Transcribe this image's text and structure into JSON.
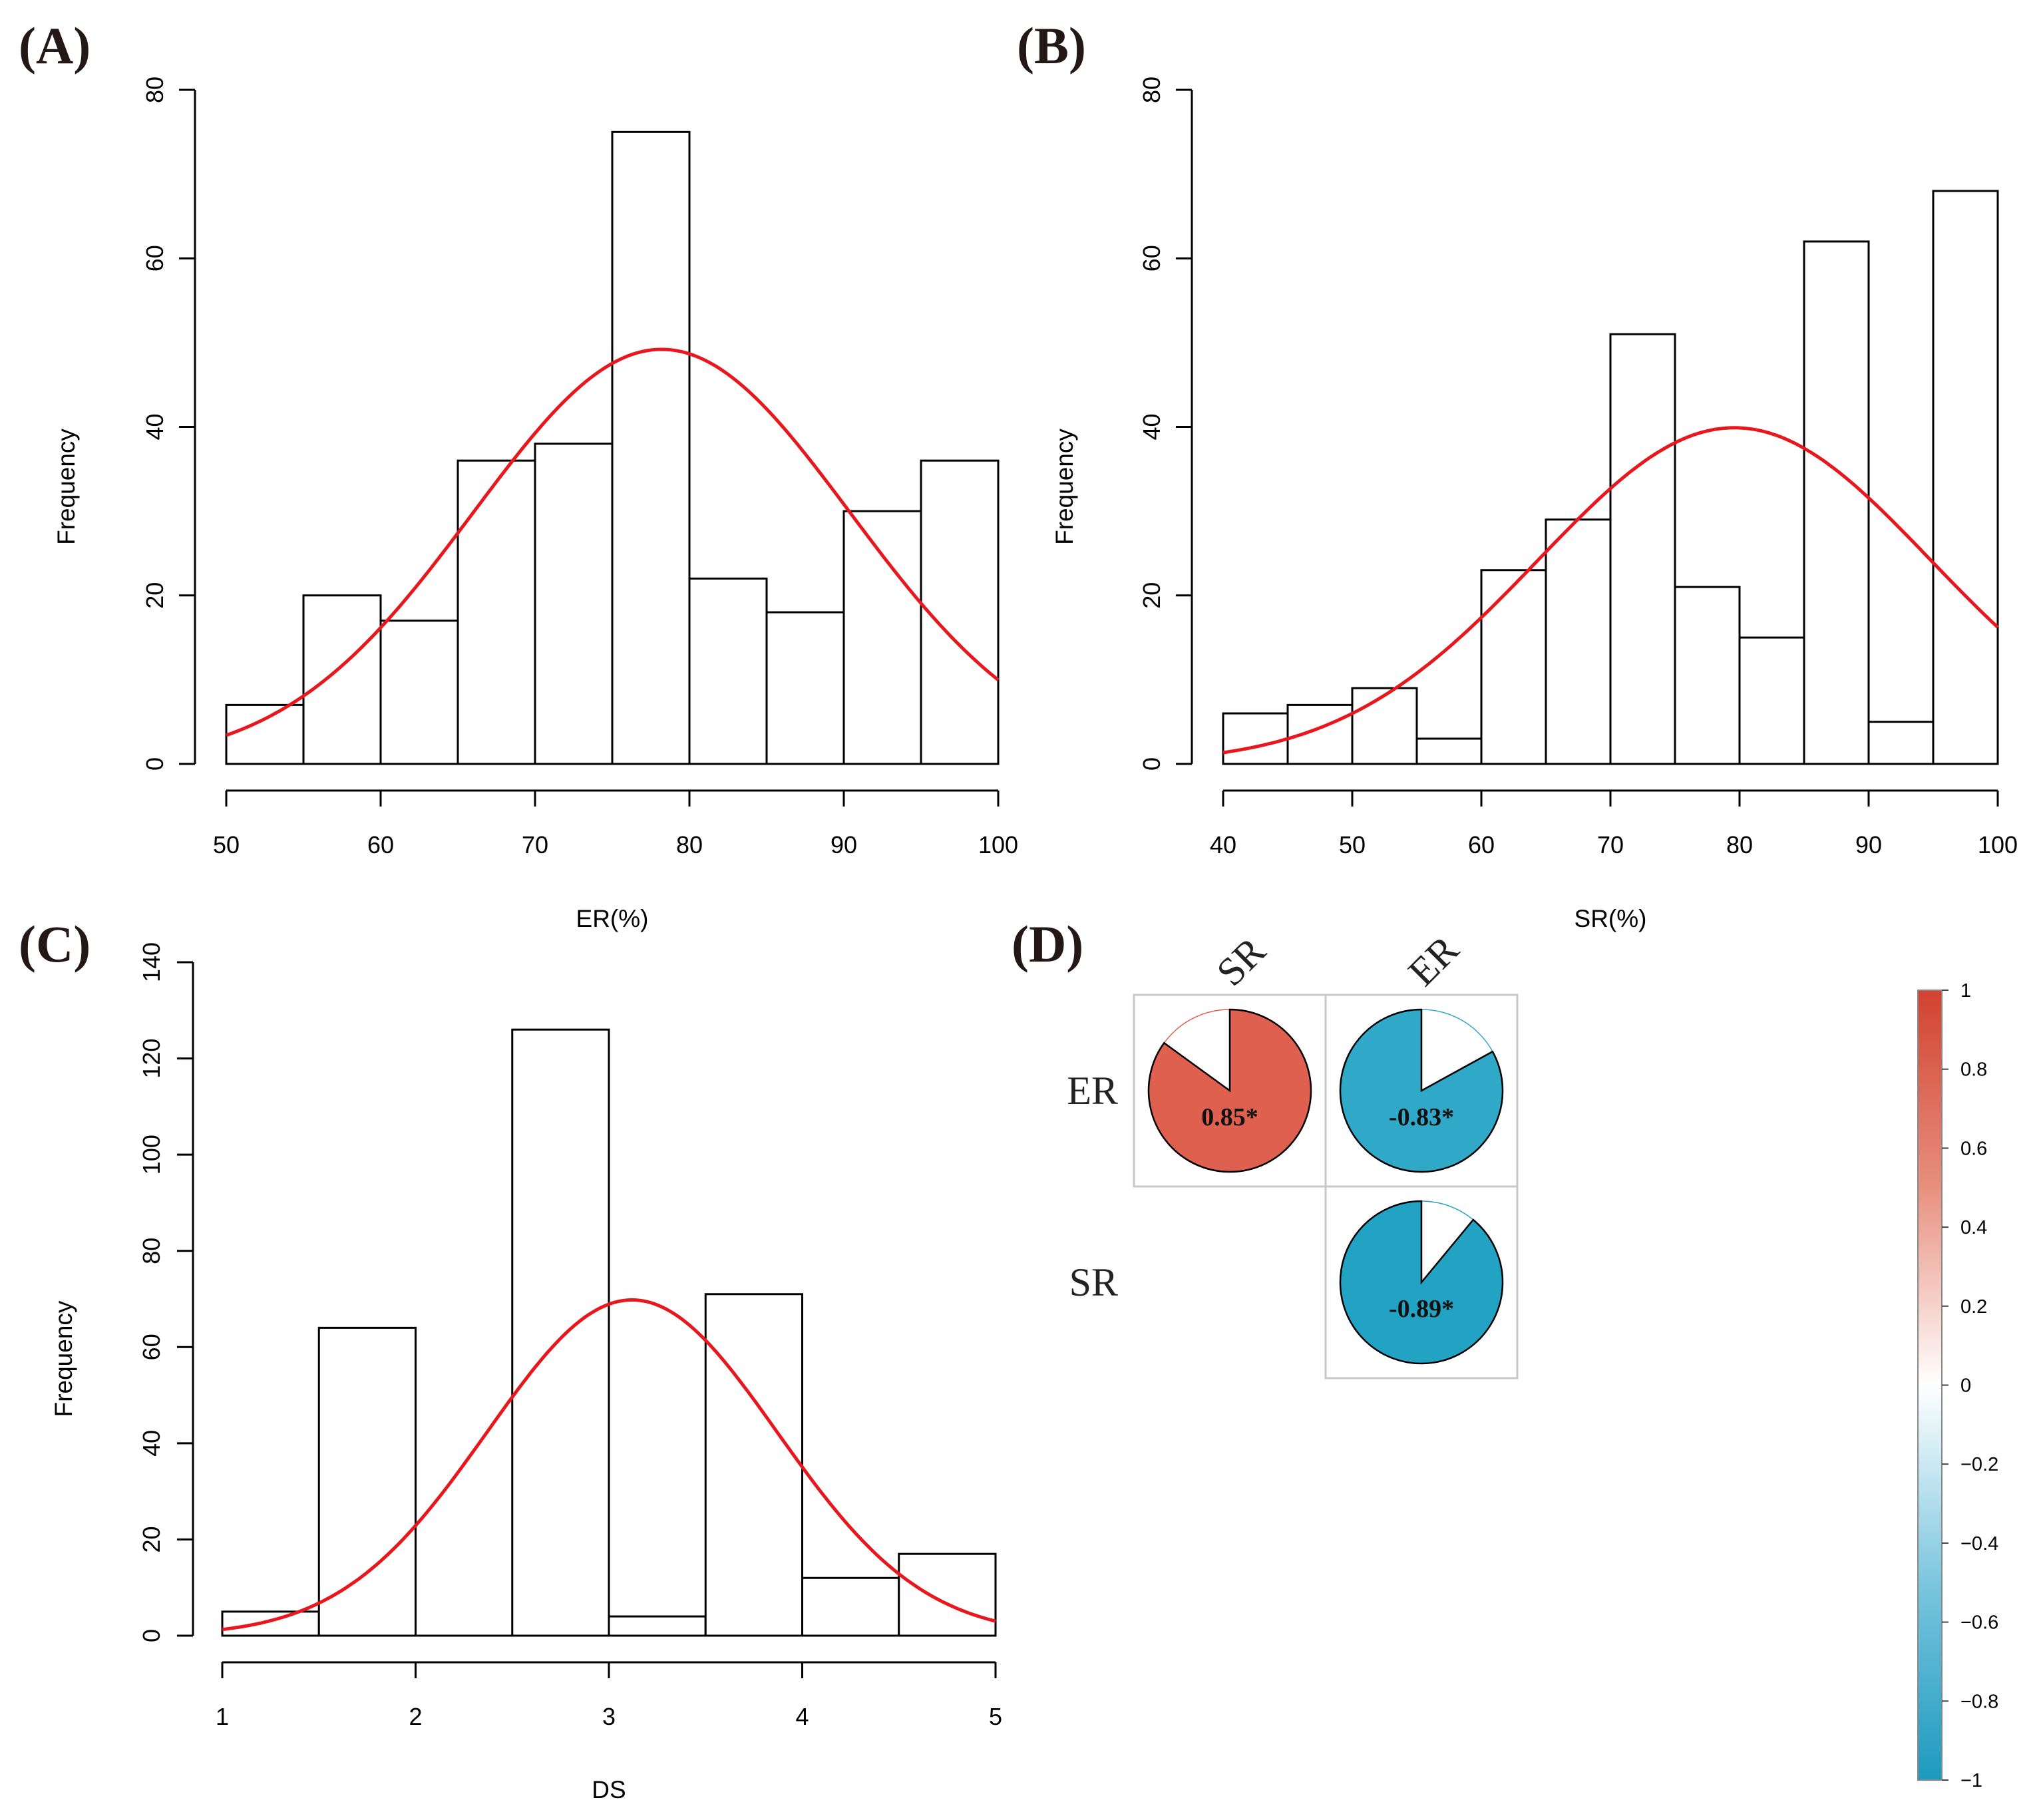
{
  "panels": {
    "A": {
      "label": "(A)"
    },
    "B": {
      "label": "(B)"
    },
    "C": {
      "label": "(C)"
    },
    "D": {
      "label": "(D)"
    }
  },
  "colors": {
    "curve": "#e8171d",
    "positive": "#e0604f",
    "negative": "#30a8c8",
    "negative_strong": "#23a3c4",
    "box_border": "#c8c8c8"
  },
  "chart_data": [
    {
      "panel": "(A)",
      "type": "bar",
      "subtype": "histogram",
      "xlabel": "ER(%)",
      "ylabel": "Frequency",
      "xlim": [
        50,
        100
      ],
      "ylim": [
        0,
        80
      ],
      "xticks": [
        50,
        60,
        70,
        80,
        90,
        100
      ],
      "yticks": [
        0,
        20,
        40,
        60,
        80
      ],
      "bins": [
        [
          50,
          55
        ],
        [
          55,
          60
        ],
        [
          60,
          65
        ],
        [
          65,
          70
        ],
        [
          70,
          75
        ],
        [
          75,
          80
        ],
        [
          80,
          85
        ],
        [
          85,
          90
        ],
        [
          90,
          95
        ],
        [
          95,
          100
        ]
      ],
      "values": [
        7,
        20,
        17,
        36,
        38,
        75,
        22,
        18,
        30,
        36
      ],
      "normal_curve": {
        "mean": 78.2,
        "sd": 12.2,
        "peak": 49.2
      }
    },
    {
      "panel": "(B)",
      "type": "bar",
      "subtype": "histogram",
      "xlabel": "SR(%)",
      "ylabel": "Frequency",
      "xlim": [
        40,
        100
      ],
      "ylim": [
        0,
        80
      ],
      "xticks": [
        40,
        50,
        60,
        70,
        80,
        90,
        100
      ],
      "yticks": [
        0,
        20,
        40,
        60,
        80
      ],
      "bins": [
        [
          40,
          45
        ],
        [
          45,
          50
        ],
        [
          50,
          55
        ],
        [
          55,
          60
        ],
        [
          60,
          65
        ],
        [
          65,
          70
        ],
        [
          70,
          75
        ],
        [
          75,
          80
        ],
        [
          80,
          85
        ],
        [
          85,
          90
        ],
        [
          90,
          95
        ],
        [
          95,
          100
        ]
      ],
      "values": [
        6,
        7,
        9,
        3,
        23,
        29,
        51,
        21,
        15,
        62,
        5,
        68
      ],
      "normal_curve": {
        "mean": 79.6,
        "sd": 15.2,
        "peak": 39.9
      }
    },
    {
      "panel": "(C)",
      "type": "bar",
      "subtype": "histogram",
      "xlabel": "DS",
      "ylabel": "Frequency",
      "xlim": [
        1,
        5
      ],
      "ylim": [
        0,
        140
      ],
      "xticks": [
        1,
        2,
        3,
        4,
        5
      ],
      "yticks": [
        0,
        20,
        40,
        60,
        80,
        100,
        120,
        140
      ],
      "bins": [
        [
          1,
          1.5
        ],
        [
          1.5,
          2
        ],
        [
          2,
          2.5
        ],
        [
          2.5,
          3
        ],
        [
          3,
          3.5
        ],
        [
          3.5,
          4
        ],
        [
          4,
          4.5
        ],
        [
          4.5,
          5
        ]
      ],
      "values": [
        5,
        64,
        0,
        126,
        4,
        71,
        12,
        17
      ],
      "normal_curve": {
        "mean": 3.12,
        "sd": 0.75,
        "peak": 69.8
      }
    },
    {
      "panel": "(D)",
      "type": "heatmap",
      "subtype": "correlation-pie",
      "columns": [
        "SR",
        "ER"
      ],
      "rows": [
        "ER",
        "SR"
      ],
      "cells": [
        {
          "row": "ER",
          "col": "SR",
          "value": 0.85,
          "label": "0.85*"
        },
        {
          "row": "ER",
          "col": "ER",
          "value": -0.83,
          "label": "-0.83*"
        },
        {
          "row": "SR",
          "col": "ER",
          "value": -0.89,
          "label": "-0.89*"
        }
      ],
      "colorbar": {
        "min": -1,
        "max": 1,
        "ticks": [
          "1",
          "0.8",
          "0.6",
          "0.4",
          "0.2",
          "0",
          "−0.2",
          "−0.4",
          "−0.6",
          "−0.8",
          "−1"
        ]
      }
    }
  ]
}
